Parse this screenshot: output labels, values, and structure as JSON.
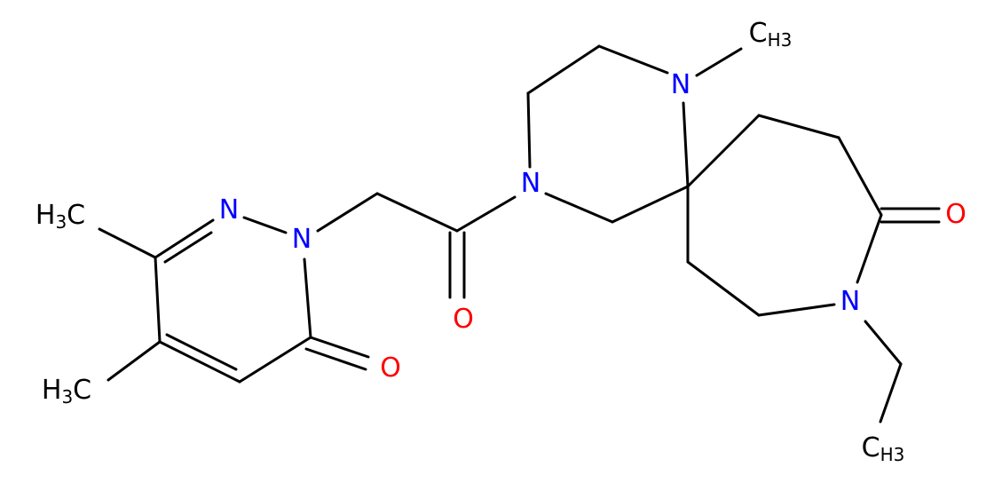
{
  "atoms": [
    {
      "main": "C",
      "sub": "H3"
    },
    {
      "main": "N"
    },
    {
      "main": "N"
    },
    {
      "main": "O"
    },
    {
      "main": "N"
    },
    {
      "main": "C",
      "sub": "H3"
    },
    {
      "main": "N"
    },
    {
      "main": "N"
    },
    {
      "main": "O"
    },
    {
      "main": "O"
    },
    {
      "pre": "H",
      "sub": "3",
      "post": "C"
    },
    {
      "pre": "H",
      "sub": "3",
      "post": "C"
    }
  ]
}
